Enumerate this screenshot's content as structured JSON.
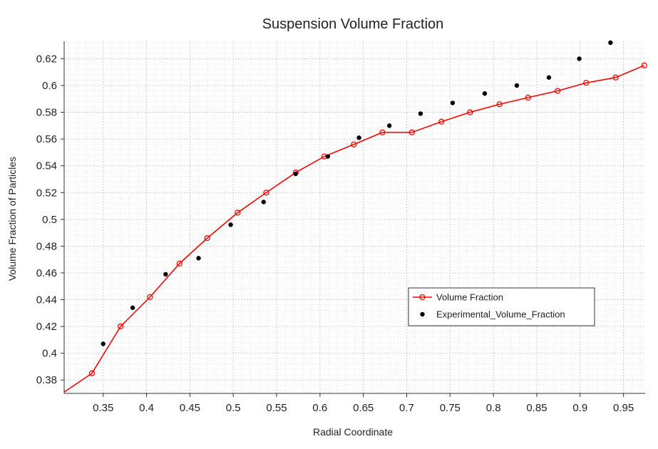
{
  "chart_data": {
    "type": "line",
    "title": "Suspension Volume Fraction",
    "xlabel": "Radial Coordinate",
    "ylabel": "Volume Fraction of Particles",
    "xlim": [
      0.305,
      0.975
    ],
    "ylim": [
      0.37,
      0.633
    ],
    "xticks": [
      0.35,
      0.4,
      0.45,
      0.5,
      0.55,
      0.6,
      0.65,
      0.7,
      0.75,
      0.8,
      0.85,
      0.9,
      0.95
    ],
    "xtick_labels": [
      "0.35",
      "0.4",
      "0.45",
      "0.5",
      "0.55",
      "0.6",
      "0.65",
      "0.7",
      "0.75",
      "0.8",
      "0.85",
      "0.9",
      "0.95"
    ],
    "yticks": [
      0.38,
      0.4,
      0.42,
      0.44,
      0.46,
      0.48,
      0.5,
      0.52,
      0.54,
      0.56,
      0.58,
      0.6,
      0.62
    ],
    "ytick_labels": [
      "0.38",
      "0.4",
      "0.42",
      "0.44",
      "0.46",
      "0.48",
      "0.5",
      "0.52",
      "0.54",
      "0.56",
      "0.58",
      "0.6",
      "0.62"
    ],
    "grid": true,
    "legend_position": "lower-right",
    "series": [
      {
        "name": "Volume Fraction",
        "style": "line-with-open-circles",
        "color": "#ff0000",
        "x": [
          0.305,
          0.337,
          0.37,
          0.404,
          0.438,
          0.47,
          0.505,
          0.538,
          0.572,
          0.605,
          0.639,
          0.672,
          0.706,
          0.74,
          0.773,
          0.807,
          0.84,
          0.874,
          0.907,
          0.941,
          0.974
        ],
        "y": [
          0.371,
          0.385,
          0.42,
          0.442,
          0.467,
          0.486,
          0.505,
          0.52,
          0.535,
          0.547,
          0.556,
          0.565,
          0.565,
          0.573,
          0.58,
          0.586,
          0.591,
          0.596,
          0.602,
          0.606,
          0.615
        ]
      },
      {
        "name": "Experimental_Volume_Fraction",
        "style": "filled-dots",
        "color": "#000000",
        "x": [
          0.35,
          0.384,
          0.422,
          0.46,
          0.497,
          0.535,
          0.572,
          0.609,
          0.645,
          0.68,
          0.716,
          0.753,
          0.79,
          0.827,
          0.864,
          0.899,
          0.935
        ],
        "y": [
          0.407,
          0.434,
          0.459,
          0.471,
          0.496,
          0.513,
          0.534,
          0.547,
          0.561,
          0.57,
          0.579,
          0.587,
          0.594,
          0.6,
          0.606,
          0.62,
          0.632
        ]
      }
    ]
  }
}
